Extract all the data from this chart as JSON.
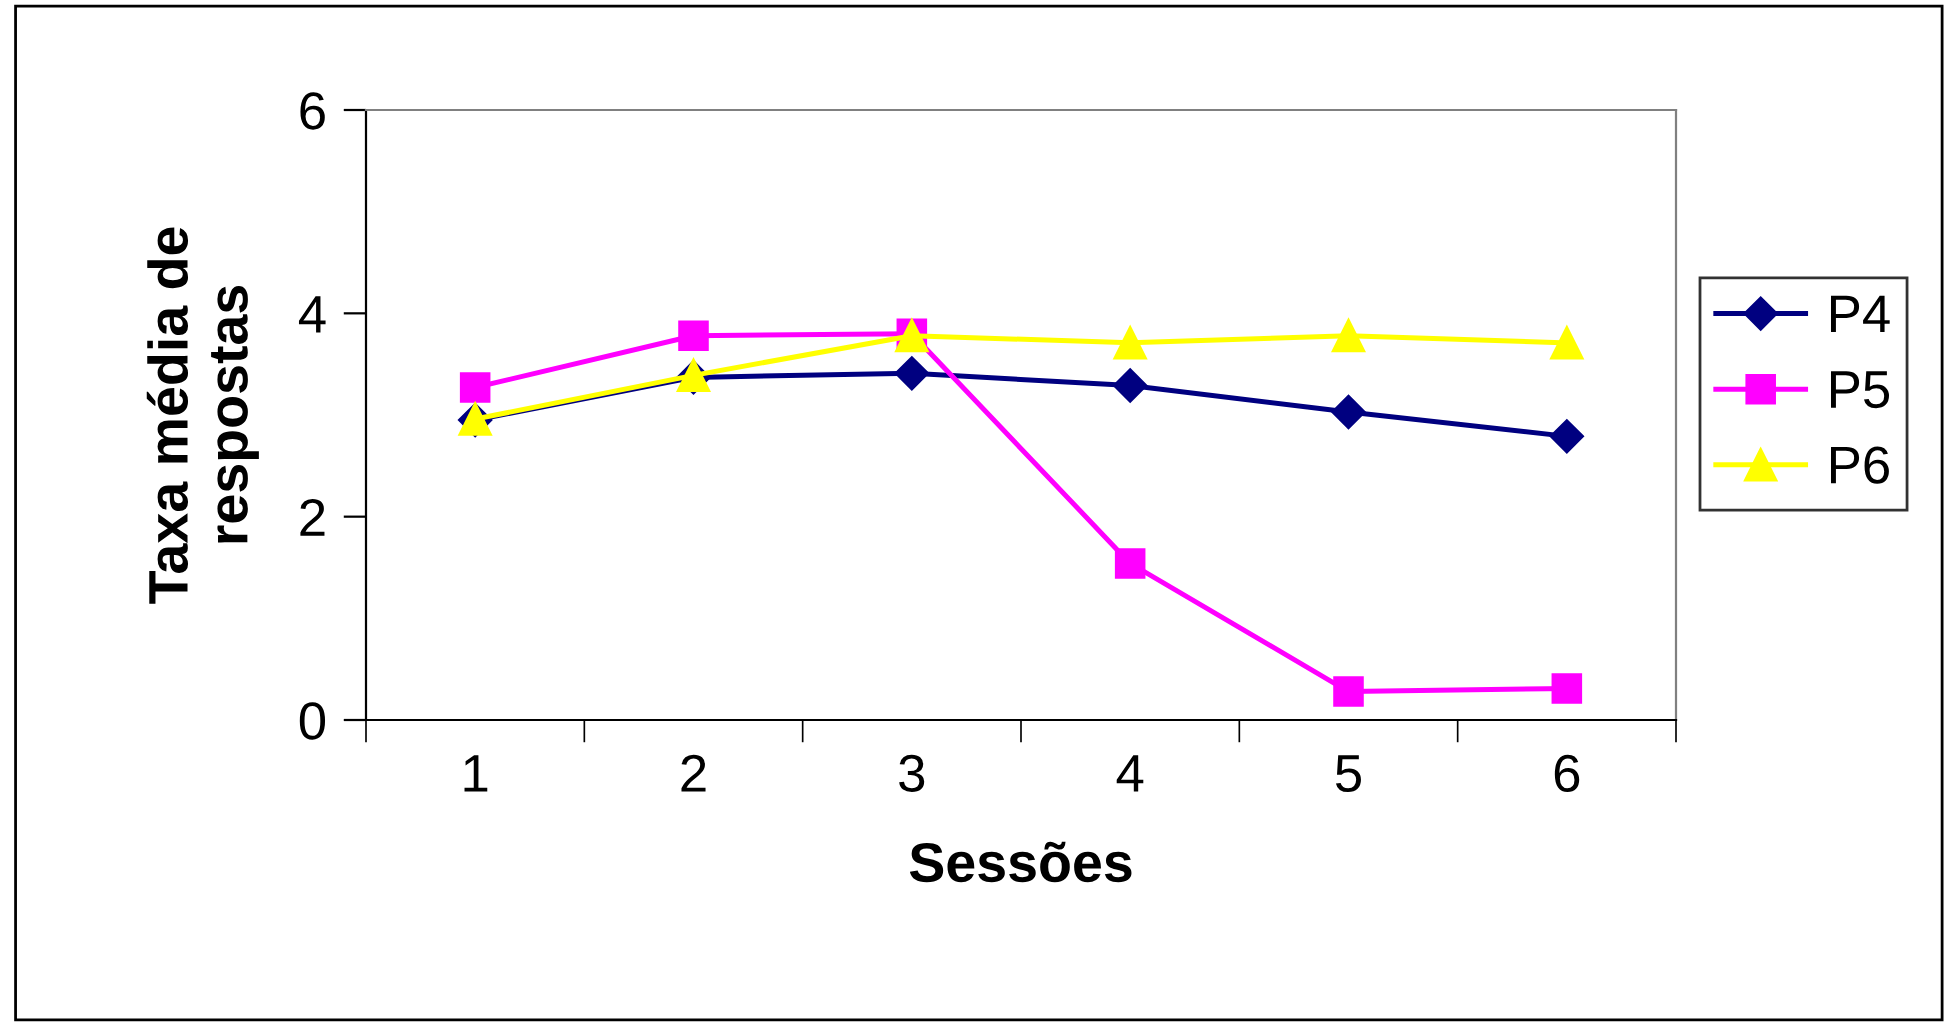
{
  "chart_data": {
    "type": "line",
    "xlabel": "Sessões",
    "ylabel": "Taxa média de\nrespostas",
    "categories": [
      "1",
      "2",
      "3",
      "4",
      "5",
      "6"
    ],
    "series": [
      {
        "name": "P4",
        "color": "#000080",
        "marker": "diamond",
        "values": [
          2.95,
          3.37,
          3.41,
          3.29,
          3.03,
          2.79
        ]
      },
      {
        "name": "P5",
        "color": "#ff00ff",
        "marker": "square",
        "values": [
          3.27,
          3.78,
          3.8,
          1.54,
          0.28,
          0.31
        ]
      },
      {
        "name": "P6",
        "color": "#ffff00",
        "marker": "triangle",
        "values": [
          2.96,
          3.39,
          3.78,
          3.71,
          3.78,
          3.71
        ]
      }
    ],
    "ylim": [
      0,
      6
    ],
    "yticks": [
      0,
      2,
      4,
      6
    ],
    "grid": false,
    "legend": "right"
  }
}
